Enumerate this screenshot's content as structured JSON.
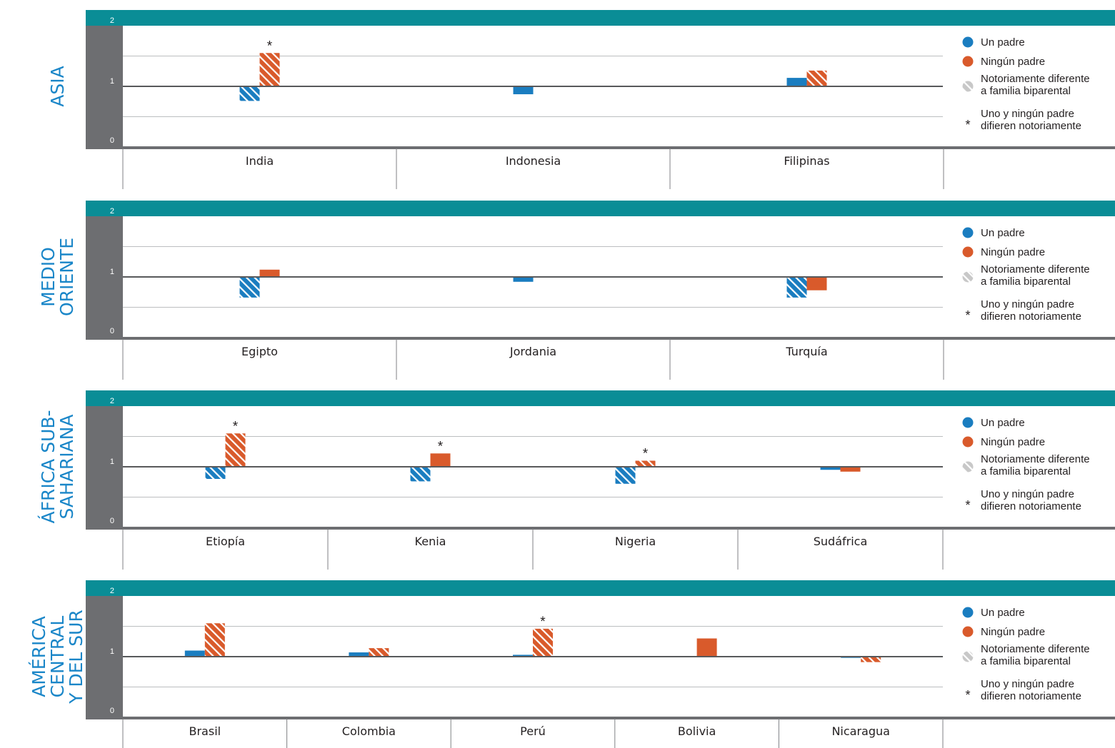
{
  "legend": {
    "one_parent": "Un padre",
    "no_parent": "Ningún padre",
    "significant_line1": "Notoriamente diferente",
    "significant_line2": "a familia biparental",
    "star_symbol": "*",
    "star_line1": "Uno y ningún padre",
    "star_line2": "difieren notoriamente"
  },
  "colors": {
    "one_parent": "#1a7dc0",
    "no_parent": "#d95a2b",
    "band": "#0a8d96",
    "axis_panel": "#6d6e71",
    "region_label": "#1a86c8",
    "grid": "#bcbec0",
    "baseline": "#58595b",
    "significant_marker": "#c8c8c8"
  },
  "chart_data": [
    {
      "type": "bar",
      "region": [
        "ASIA"
      ],
      "ylim": [
        0,
        2
      ],
      "yticks": [
        "0",
        "1",
        "2"
      ],
      "baseline": 1,
      "categories": [
        "India",
        "Indonesia",
        "Filipinas"
      ],
      "series": [
        {
          "name": "Un padre",
          "values": [
            0.76,
            0.87,
            1.14
          ],
          "significant": [
            true,
            false,
            false
          ]
        },
        {
          "name": "Ningún padre",
          "values": [
            1.55,
            1.0,
            1.26
          ],
          "significant": [
            true,
            false,
            true
          ]
        }
      ],
      "star": [
        true,
        false,
        false
      ]
    },
    {
      "type": "bar",
      "region": [
        "MEDIO",
        "ORIENTE"
      ],
      "ylim": [
        0,
        2
      ],
      "yticks": [
        "0",
        "1",
        "2"
      ],
      "baseline": 1,
      "categories": [
        "Egipto",
        "Jordania",
        "Turquía"
      ],
      "series": [
        {
          "name": "Un padre",
          "values": [
            0.66,
            0.92,
            0.66
          ],
          "significant": [
            true,
            false,
            true
          ]
        },
        {
          "name": "Ningún padre",
          "values": [
            1.12,
            1.0,
            0.78
          ],
          "significant": [
            false,
            false,
            false
          ]
        }
      ],
      "star": [
        false,
        false,
        false
      ]
    },
    {
      "type": "bar",
      "region": [
        "ÁFRICA SUB-",
        "SAHARIANA"
      ],
      "ylim": [
        0,
        2
      ],
      "yticks": [
        "0",
        "1",
        "2"
      ],
      "baseline": 1,
      "categories": [
        "Etiopía",
        "Kenia",
        "Nigeria",
        "Sudáfrica"
      ],
      "series": [
        {
          "name": "Un padre",
          "values": [
            0.8,
            0.76,
            0.72,
            0.95
          ],
          "significant": [
            true,
            true,
            true,
            false
          ]
        },
        {
          "name": "Ningún padre",
          "values": [
            1.55,
            1.22,
            1.1,
            0.92
          ],
          "significant": [
            true,
            false,
            true,
            false
          ]
        }
      ],
      "star": [
        true,
        true,
        true,
        false
      ]
    },
    {
      "type": "bar",
      "region": [
        "AMÉRICA",
        "CENTRAL",
        "Y DEL SUR"
      ],
      "ylim": [
        0,
        2
      ],
      "yticks": [
        "0",
        "1",
        "2"
      ],
      "baseline": 1,
      "categories": [
        "Brasil",
        "Colombia",
        "Perú",
        "Bolivia",
        "Nicaragua"
      ],
      "series": [
        {
          "name": "Un padre",
          "values": [
            1.1,
            1.07,
            1.03,
            1.0,
            0.98
          ],
          "significant": [
            false,
            false,
            false,
            false,
            false
          ]
        },
        {
          "name": "Ningún padre",
          "values": [
            1.55,
            1.14,
            1.46,
            1.3,
            0.91
          ],
          "significant": [
            true,
            true,
            true,
            false,
            true
          ]
        }
      ],
      "star": [
        false,
        false,
        true,
        false,
        false
      ]
    }
  ]
}
